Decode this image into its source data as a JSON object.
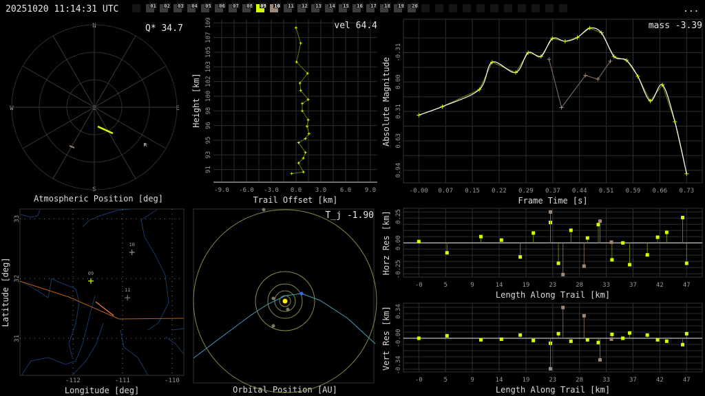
{
  "header": {
    "timestamp": "20251020 11:14:31 UTC",
    "menu_label": "...",
    "frames": [
      {
        "label": "",
        "state": "empty"
      },
      {
        "label": "01",
        "state": "idle"
      },
      {
        "label": "02",
        "state": "idle"
      },
      {
        "label": "03",
        "state": "idle"
      },
      {
        "label": "04",
        "state": "idle"
      },
      {
        "label": "05",
        "state": "idle"
      },
      {
        "label": "06",
        "state": "idle"
      },
      {
        "label": "07",
        "state": "idle"
      },
      {
        "label": "08",
        "state": "idle"
      },
      {
        "label": "09",
        "state": "primary"
      },
      {
        "label": "10",
        "state": "secondary"
      },
      {
        "label": "11",
        "state": "idle"
      },
      {
        "label": "12",
        "state": "idle"
      },
      {
        "label": "13",
        "state": "idle"
      },
      {
        "label": "14",
        "state": "idle"
      },
      {
        "label": "15",
        "state": "idle"
      },
      {
        "label": "16",
        "state": "idle"
      },
      {
        "label": "17",
        "state": "idle"
      },
      {
        "label": "18",
        "state": "idle"
      },
      {
        "label": "19",
        "state": "idle"
      },
      {
        "label": "20",
        "state": "idle"
      },
      {
        "label": "",
        "state": "empty"
      },
      {
        "label": "",
        "state": "empty"
      },
      {
        "label": "",
        "state": "empty"
      },
      {
        "label": "",
        "state": "empty"
      },
      {
        "label": "",
        "state": "empty"
      },
      {
        "label": "",
        "state": "empty"
      },
      {
        "label": "",
        "state": "empty"
      },
      {
        "label": "",
        "state": "empty"
      },
      {
        "label": "",
        "state": "empty"
      },
      {
        "label": "",
        "state": "empty"
      },
      {
        "label": "",
        "state": "empty"
      }
    ]
  },
  "colors": {
    "primary": "#d4ff00",
    "secondary": "#a08878",
    "idle": "#3c3c3c",
    "empty": "#151515",
    "stem_primary": "#6b7a00",
    "stem_secondary": "#7a6458",
    "border": "#b8620e",
    "rivers": "#1a3a66",
    "orbit": "#8a8a50",
    "trajectory": "#3fa0b8",
    "sun": "#ffee00",
    "body": "#2f6bff"
  },
  "polar": {
    "title": "Atmospheric Position [deg]",
    "annotation": "Q* 34.7",
    "compass": {
      "n": "N",
      "s": "S",
      "e": "E",
      "w": "W",
      "z": "Z"
    },
    "radiant_marker": "R"
  },
  "map": {
    "xlabel": "Longitude [deg]",
    "ylabel": "Latitude [deg]",
    "x_ticks": [
      "-112",
      "-111",
      "-110"
    ],
    "y_ticks": [
      "33",
      "32",
      "31"
    ],
    "stations": [
      {
        "label": "09",
        "lon": -111.64,
        "lat": 31.96,
        "state": "primary"
      },
      {
        "label": "10",
        "lon": -110.81,
        "lat": 32.44,
        "state": "secondary"
      },
      {
        "label": "11",
        "lon": -110.9,
        "lat": 31.68,
        "state": "idle"
      }
    ]
  },
  "orbit": {
    "title": "Orbital Position [AU]",
    "annotation": "T_j -1.90"
  },
  "chart_data": [
    {
      "type": "line",
      "id": "trail",
      "xlabel": "Trail Offset [km]",
      "ylabel": "Height [km]",
      "annotation": "vel 64.4",
      "xlim": [
        -10,
        10
      ],
      "ylim": [
        89.45,
        109.45
      ],
      "x_ticks": [
        "-9.0",
        "-6.0",
        "-3.0",
        "0.0",
        "3.0",
        "6.0",
        "9.0"
      ],
      "y_ticks": [
        "109",
        "107",
        "105",
        "103",
        "102",
        "100",
        "98",
        "96",
        "95",
        "93",
        "91"
      ],
      "grid": true,
      "x": [
        0.0,
        0.56,
        0.06,
        1.39,
        0.47,
        0.56,
        1.47,
        0.75,
        0.75,
        1.47,
        1.33,
        1.56,
        1.14,
        0.31,
        1.14,
        0.89,
        0.31,
        0.89,
        -0.53
      ],
      "y": [
        108.4,
        106.5,
        104.2,
        102.8,
        101.6,
        100.7,
        99.6,
        99.1,
        98.2,
        97.1,
        96.3,
        95.4,
        94.8,
        94.3,
        93.1,
        92.4,
        91.8,
        90.7,
        90.5
      ]
    },
    {
      "type": "line",
      "id": "lightcurve",
      "xlabel": "Frame Time [s]",
      "ylabel": "Absolute Magnitude",
      "annotation": "mass -3.39",
      "y_inverted": true,
      "x_ticks": [
        "-0.00",
        "0.07",
        "0.15",
        "0.22",
        "0.29",
        "0.37",
        "0.44",
        "0.51",
        "0.59",
        "0.66",
        "0.73"
      ],
      "y_ticks": [
        "-0.31",
        "0.00",
        "0.31",
        "0.63",
        "0.94"
      ],
      "grid": true,
      "series": [
        {
          "state": "primary",
          "x": [
            0,
            0.064,
            0.165,
            0.2,
            0.264,
            0.298,
            0.333,
            0.364,
            0.399,
            0.432,
            0.466,
            0.498,
            0.532,
            0.566,
            0.597,
            0.631,
            0.664,
            0.698,
            0.73
          ],
          "y": [
            0.35,
            0.26,
            0.08,
            -0.21,
            -0.1,
            -0.31,
            -0.27,
            -0.46,
            -0.43,
            -0.47,
            -0.57,
            -0.52,
            -0.27,
            -0.23,
            -0.06,
            0.2,
            0.03,
            0.42,
            0.97
          ]
        },
        {
          "state": "secondary",
          "x": [
            0.355,
            0.389,
            0.454,
            0.488,
            0.522
          ],
          "y": [
            -0.24,
            0.27,
            -0.07,
            -0.03,
            -0.22
          ]
        }
      ]
    },
    {
      "type": "scatter",
      "id": "horz",
      "xlabel": "Length Along Trail [km]",
      "ylabel": "Horz Res [km]",
      "x_ticks": [
        "-0",
        "5",
        "9",
        "14",
        "19",
        "23",
        "28",
        "33",
        "37",
        "42",
        "47"
      ],
      "y_ticks": [
        "0.25",
        "0.00",
        "-0.25"
      ],
      "grid": true,
      "series": [
        {
          "state": "primary",
          "x": [
            0,
            4.95,
            10.9,
            14.5,
            17.8,
            20.1,
            23.1,
            24.5,
            26.7,
            29.6,
            31.5,
            33.9,
            35.8,
            37.0,
            40.1,
            41.9,
            43.5,
            46.3,
            47.0
          ],
          "y": [
            0.013,
            -0.094,
            0.06,
            0.027,
            -0.134,
            0.094,
            0.194,
            -0.194,
            0.12,
            0.047,
            0.174,
            -0.161,
            0.0,
            -0.207,
            -0.114,
            0.054,
            0.1,
            0.241,
            -0.194
          ]
        },
        {
          "state": "secondary",
          "x": [
            23.1,
            25.3,
            29.0,
            31.8,
            33.8
          ],
          "y": [
            0.294,
            -0.301,
            -0.221,
            0.207,
            0.007
          ]
        }
      ]
    },
    {
      "type": "scatter",
      "id": "vert",
      "xlabel": "Length Along Trail [km]",
      "ylabel": "Vert Res [km]",
      "x_ticks": [
        "-0",
        "5",
        "9",
        "14",
        "19",
        "23",
        "28",
        "33",
        "37",
        "42",
        "47"
      ],
      "y_ticks": [
        "0.34",
        "-0.00",
        "-0.34"
      ],
      "grid": true,
      "series": [
        {
          "state": "primary",
          "x": [
            0,
            4.95,
            10.9,
            14.5,
            17.8,
            20.1,
            23.1,
            24.5,
            26.7,
            29.6,
            31.5,
            33.9,
            35.8,
            37.0,
            40.1,
            41.9,
            43.5,
            46.3,
            47.0
          ],
          "y": [
            0,
            0.032,
            -0.02,
            -0.012,
            0.041,
            -0.029,
            -0.064,
            0.058,
            -0.038,
            -0.02,
            -0.055,
            0.049,
            0,
            0.067,
            0.041,
            -0.02,
            -0.038,
            -0.081,
            0.058
          ]
        },
        {
          "state": "secondary",
          "x": [
            23.1,
            25.3,
            29.0,
            31.8,
            33.8
          ],
          "y": [
            -0.387,
            0.39,
            0.285,
            -0.274,
            -0.012
          ]
        }
      ]
    }
  ]
}
